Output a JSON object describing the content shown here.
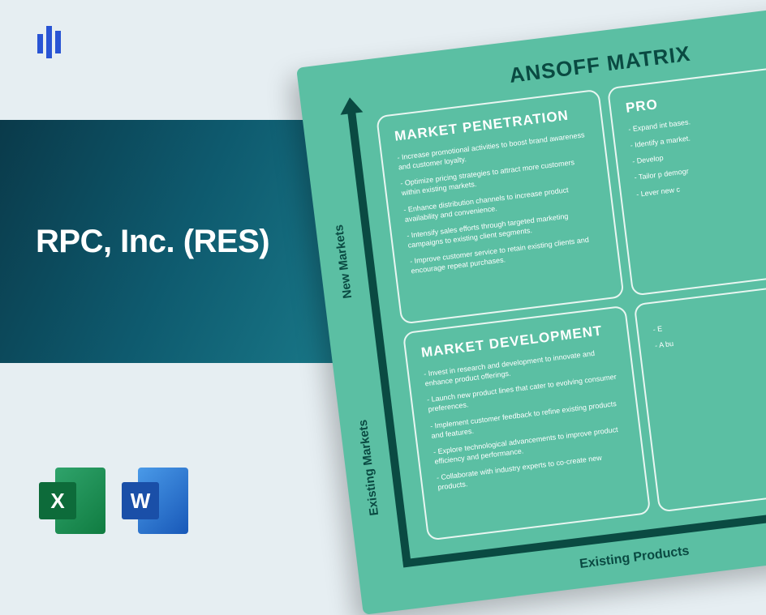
{
  "company_title": "RPC, Inc. (RES)",
  "file_icons": {
    "excel_letter": "X",
    "word_letter": "W"
  },
  "matrix": {
    "title": "ANSOFF MATRIX",
    "colors": {
      "background": "#5bbfa3",
      "axis": "#0a4a42",
      "cell_border": "#e8f6f1",
      "text": "#ffffff",
      "title_color": "#0a4a42"
    },
    "y_axis": {
      "top_label": "New Markets",
      "bottom_label": "Existing Markets"
    },
    "x_axis": {
      "label": "Existing Products"
    },
    "cells": {
      "top_left": {
        "heading": "MARKET PENETRATION",
        "items": [
          "- Increase promotional activities to boost brand awareness and customer loyalty.",
          "- Optimize pricing strategies to attract more customers within existing markets.",
          "- Enhance distribution channels to increase product availability and convenience.",
          "- Intensify sales efforts through targeted marketing campaigns to existing client segments.",
          "- Improve customer service to retain existing clients and encourage repeat purchases."
        ]
      },
      "top_right": {
        "heading": "PRO",
        "items": [
          "- Expand int bases.",
          "- Identify a market.",
          "- Develop",
          "- Tailor p demogr",
          "- Lever new c"
        ]
      },
      "bottom_left": {
        "heading": "MARKET DEVELOPMENT",
        "items": [
          "- Invest in research and development to innovate and enhance product offerings.",
          "- Launch new product lines that cater to evolving consumer preferences.",
          "- Implement customer feedback to refine existing products and features.",
          "- Explore technological advancements to improve product efficiency and performance.",
          "- Collaborate with industry experts to co-create new products."
        ]
      },
      "bottom_right": {
        "heading": "",
        "items": [
          "- E",
          "- A bu"
        ]
      }
    }
  }
}
